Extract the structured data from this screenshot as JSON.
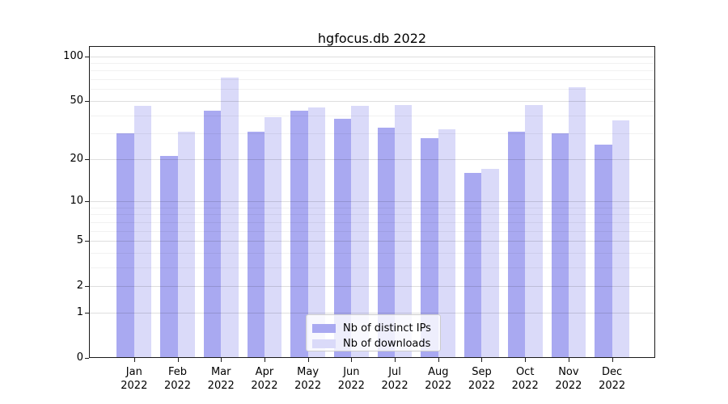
{
  "title": "hgfocus.db 2022",
  "legend": {
    "items": [
      {
        "label": "Nb of distinct IPs",
        "color": "#a9a9f1"
      },
      {
        "label": "Nb of downloads",
        "color": "#dadaf9"
      }
    ]
  },
  "chart_data": {
    "type": "bar",
    "title": "hgfocus.db 2022",
    "categories": [
      "Jan 2022",
      "Feb 2022",
      "Mar 2022",
      "Apr 2022",
      "May 2022",
      "Jun 2022",
      "Jul 2022",
      "Aug 2022",
      "Sep 2022",
      "Oct 2022",
      "Nov 2022",
      "Dec 2022"
    ],
    "months": [
      "Jan",
      "Feb",
      "Mar",
      "Apr",
      "May",
      "Jun",
      "Jul",
      "Aug",
      "Sep",
      "Oct",
      "Nov",
      "Dec"
    ],
    "year": "2022",
    "series": [
      {
        "name": "Nb of distinct IPs",
        "color": "#a9a9f1",
        "values": [
          30,
          21,
          43,
          31,
          43,
          38,
          33,
          28,
          16,
          31,
          30,
          25
        ]
      },
      {
        "name": "Nb of downloads",
        "color": "#dadaf9",
        "values": [
          46,
          31,
          72,
          39,
          45,
          46,
          47,
          32,
          17,
          47,
          62,
          37
        ]
      }
    ],
    "xlabel": "",
    "ylabel": "",
    "yscale": "log1p",
    "yticks": [
      0,
      1,
      2,
      5,
      10,
      20,
      50,
      100
    ],
    "yticks_minor": [
      3,
      4,
      6,
      7,
      8,
      9,
      30,
      40,
      60,
      70,
      80,
      90
    ],
    "ylim": [
      0,
      117
    ],
    "grid": "horizontal, major and minor, drawn through translucent bars",
    "legend_position": "lower center"
  }
}
